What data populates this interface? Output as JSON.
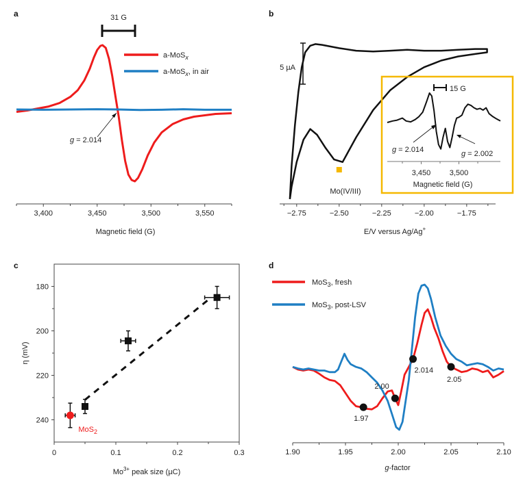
{
  "colors": {
    "red": "#ee1c1c",
    "blue": "#1f7fc4",
    "black": "#111111",
    "orange": "#f5b800"
  },
  "chart_data": [
    {
      "panel": "a",
      "type": "line",
      "xlabel": "Magnetic field (G)",
      "ylabel": "",
      "xlim": [
        3375,
        3575
      ],
      "xticks": [
        3400,
        3450,
        3500,
        3550
      ],
      "xtick_labels": [
        "3,400",
        "3,450",
        "3,500",
        "3,550"
      ],
      "scale_bar_label": "31 G",
      "annotation": {
        "text_italic": "g",
        "text": " = 2.014",
        "x": 3470
      },
      "legend": [
        {
          "label": "a-MoS",
          "sub": "x",
          "suffix": "",
          "color": "#ee1c1c"
        },
        {
          "label": "a-MoS",
          "sub": "x",
          "suffix": ", in air",
          "color": "#1f7fc4"
        }
      ],
      "series": [
        {
          "name": "a-MoSx",
          "color": "#ee1c1c",
          "x": [
            3375,
            3385,
            3395,
            3405,
            3415,
            3425,
            3432,
            3438,
            3443,
            3447,
            3450,
            3453,
            3455,
            3458,
            3461,
            3464,
            3467,
            3470,
            3473,
            3476,
            3479,
            3482,
            3485,
            3488,
            3492,
            3497,
            3503,
            3510,
            3520,
            3530,
            3540,
            3550,
            3560,
            3575
          ],
          "y": [
            0.02,
            0.04,
            0.07,
            0.1,
            0.15,
            0.24,
            0.34,
            0.48,
            0.65,
            0.82,
            0.93,
            0.99,
            1.0,
            0.96,
            0.8,
            0.55,
            0.25,
            -0.05,
            -0.4,
            -0.7,
            -0.9,
            -0.98,
            -1.0,
            -0.95,
            -0.82,
            -0.62,
            -0.43,
            -0.28,
            -0.16,
            -0.09,
            -0.05,
            -0.03,
            -0.01,
            0.0
          ]
        },
        {
          "name": "a-MoSx, in air",
          "color": "#1f7fc4",
          "x": [
            3375,
            3400,
            3425,
            3450,
            3470,
            3490,
            3510,
            3530,
            3550,
            3575
          ],
          "y": [
            0.0,
            -0.01,
            0.0,
            0.01,
            0.0,
            -0.02,
            -0.01,
            0.01,
            -0.01,
            -0.01
          ]
        }
      ]
    },
    {
      "panel": "b",
      "type": "line",
      "xlabel": "E/V versus Ag/Ag",
      "xlabel_sup": "+",
      "xlim": [
        -2.85,
        -1.58
      ],
      "xticks": [
        -2.75,
        -2.5,
        -2.25,
        -2.0,
        -1.75
      ],
      "xtick_labels": [
        "−2.75",
        "−2.50",
        "−2.25",
        "−2.00",
        "−1.75"
      ],
      "scale_bar_label": "5 µA",
      "annotation": {
        "text": "Mo(IV/III)",
        "marker_x": -2.5
      },
      "series": [
        {
          "name": "CV",
          "color": "#111111",
          "x": [
            -2.79,
            -2.78,
            -2.76,
            -2.74,
            -2.72,
            -2.7,
            -2.67,
            -2.64,
            -2.6,
            -2.55,
            -2.5,
            -2.4,
            -2.3,
            -2.2,
            -2.1,
            -2.0,
            -1.9,
            -1.8,
            -1.7,
            -1.63,
            -1.63,
            -1.7,
            -1.8,
            -1.9,
            -2.0,
            -2.1,
            -2.2,
            -2.3,
            -2.4,
            -2.48,
            -2.53,
            -2.58,
            -2.63,
            -2.67,
            -2.71,
            -2.75,
            -2.78,
            -2.79
          ],
          "y": [
            -12.0,
            -8.0,
            -3.0,
            1.0,
            4.0,
            5.8,
            6.6,
            6.8,
            6.7,
            6.5,
            6.3,
            6.0,
            5.9,
            6.0,
            6.1,
            6.0,
            6.0,
            6.1,
            6.2,
            6.2,
            5.8,
            5.6,
            5.3,
            4.8,
            4.0,
            2.8,
            1.2,
            -1.2,
            -4.5,
            -7.5,
            -7.2,
            -5.8,
            -4.2,
            -3.5,
            -4.8,
            -7.5,
            -10.5,
            -12.0
          ]
        }
      ],
      "inset": {
        "xlabel": "Magnetic field (G)",
        "xlim": [
          3405,
          3555
        ],
        "xticks": [
          3450,
          3500
        ],
        "xtick_labels": [
          "3,450",
          "3,500"
        ],
        "scale_bar_label": "15 G",
        "annotations": [
          {
            "text_italic": "g",
            "text": " = 2.014"
          },
          {
            "text_italic": "g",
            "text": " = 2.002"
          }
        ],
        "series": [
          {
            "name": "EPR inset",
            "color": "#111111",
            "x": [
              3405,
              3412,
              3418,
              3425,
              3430,
              3436,
              3442,
              3447,
              3452,
              3457,
              3461,
              3464,
              3467,
              3470,
              3473,
              3476,
              3479,
              3482,
              3485,
              3488,
              3491,
              3494,
              3497,
              3500,
              3504,
              3508,
              3512,
              3516,
              3520,
              3524,
              3528,
              3532,
              3536,
              3540,
              3545,
              3550,
              3555
            ],
            "y": [
              0.0,
              0.05,
              0.08,
              0.15,
              0.05,
              0.02,
              0.1,
              0.2,
              0.35,
              0.7,
              1.0,
              0.9,
              0.4,
              -0.3,
              -0.75,
              -0.9,
              -0.5,
              -0.2,
              -0.65,
              -0.85,
              -0.5,
              -0.1,
              0.15,
              0.18,
              0.25,
              0.5,
              0.62,
              0.58,
              0.5,
              0.45,
              0.48,
              0.42,
              0.5,
              0.3,
              0.2,
              0.12,
              0.05
            ]
          }
        ]
      }
    },
    {
      "panel": "c",
      "type": "scatter",
      "xlabel": "Mo",
      "xlabel_sup": "3+",
      "xlabel_rest": " peak size (µC)",
      "ylabel": "η (mV)",
      "xlim": [
        0,
        0.3
      ],
      "ylim": [
        250,
        170
      ],
      "y_inverted": true,
      "xticks": [
        0,
        0.1,
        0.2,
        0.3
      ],
      "xtick_labels": [
        "0",
        "0.1",
        "0.2",
        "0.3"
      ],
      "yticks": [
        180,
        200,
        220,
        240
      ],
      "ytick_labels": [
        "180",
        "200",
        "220",
        "240"
      ],
      "points": [
        {
          "x": 0.026,
          "y": 238,
          "xerr": 0.008,
          "yerr": 5.5,
          "marker": "circle",
          "color": "#ee1c1c",
          "label": "MoS",
          "label_sub": "2"
        },
        {
          "x": 0.05,
          "y": 234,
          "xerr": 0.003,
          "yerr": 3.2,
          "marker": "square",
          "color": "#111111"
        },
        {
          "x": 0.12,
          "y": 204.5,
          "xerr": 0.012,
          "yerr": 4.5,
          "marker": "square",
          "color": "#111111"
        },
        {
          "x": 0.264,
          "y": 185,
          "xerr": 0.02,
          "yerr": 5.0,
          "marker": "square",
          "color": "#111111"
        }
      ],
      "fit_line": {
        "x": [
          0.05,
          0.25
        ],
        "y": [
          231,
          186
        ],
        "style": "dashed"
      }
    },
    {
      "panel": "d",
      "type": "line",
      "xlabel": "g",
      "xlabel_rest": "-factor",
      "xlim": [
        1.9,
        2.1
      ],
      "xticks": [
        1.9,
        1.95,
        2.0,
        2.05,
        2.1
      ],
      "xtick_labels": [
        "1.90",
        "1.95",
        "2.00",
        "2.05",
        "2.10"
      ],
      "legend": [
        {
          "label": "MoS",
          "sub": "3",
          "suffix": ", fresh",
          "color": "#ee1c1c"
        },
        {
          "label": "MoS",
          "sub": "3",
          "suffix": ", post-LSV",
          "color": "#1f7fc4"
        }
      ],
      "markers": [
        {
          "x": 1.967,
          "label": "1.97"
        },
        {
          "x": 1.997,
          "label": "2.00"
        },
        {
          "x": 2.014,
          "label": "2.014"
        },
        {
          "x": 2.05,
          "label": "2.05"
        }
      ],
      "series": [
        {
          "name": "MoS3, fresh",
          "color": "#ee1c1c",
          "x": [
            1.9,
            1.905,
            1.91,
            1.915,
            1.92,
            1.925,
            1.93,
            1.935,
            1.94,
            1.945,
            1.95,
            1.955,
            1.96,
            1.965,
            1.967,
            1.97,
            1.975,
            1.98,
            1.985,
            1.99,
            1.994,
            1.997,
            2.0,
            2.003,
            2.006,
            2.01,
            2.014,
            2.018,
            2.022,
            2.025,
            2.028,
            2.031,
            2.034,
            2.038,
            2.042,
            2.046,
            2.05,
            2.055,
            2.06,
            2.065,
            2.07,
            2.075,
            2.08,
            2.085,
            2.09,
            2.095,
            2.1
          ],
          "y": [
            0.15,
            0.1,
            0.08,
            0.1,
            0.08,
            0.02,
            -0.05,
            -0.1,
            -0.12,
            -0.2,
            -0.35,
            -0.5,
            -0.6,
            -0.62,
            -0.62,
            -0.65,
            -0.66,
            -0.6,
            -0.45,
            -0.32,
            -0.3,
            -0.45,
            -0.58,
            -0.3,
            0.0,
            0.15,
            0.3,
            0.6,
            0.95,
            1.18,
            1.25,
            1.1,
            0.9,
            0.7,
            0.45,
            0.25,
            0.15,
            0.1,
            0.05,
            0.07,
            0.12,
            0.1,
            0.05,
            0.08,
            -0.05,
            0.0,
            0.07
          ]
        },
        {
          "name": "MoS3, post-LSV",
          "color": "#1f7fc4",
          "x": [
            1.9,
            1.905,
            1.91,
            1.915,
            1.92,
            1.925,
            1.93,
            1.935,
            1.94,
            1.943,
            1.946,
            1.949,
            1.952,
            1.955,
            1.96,
            1.965,
            1.97,
            1.975,
            1.98,
            1.985,
            1.99,
            1.994,
            1.998,
            2.001,
            2.004,
            2.007,
            2.01,
            2.013,
            2.016,
            2.019,
            2.022,
            2.025,
            2.028,
            2.031,
            2.035,
            2.04,
            2.045,
            2.05,
            2.055,
            2.06,
            2.065,
            2.07,
            2.075,
            2.08,
            2.085,
            2.09,
            2.095,
            2.1
          ],
          "y": [
            0.15,
            0.12,
            0.1,
            0.12,
            0.1,
            0.08,
            0.08,
            0.05,
            0.05,
            0.1,
            0.25,
            0.4,
            0.28,
            0.2,
            0.15,
            0.12,
            0.05,
            -0.05,
            -0.15,
            -0.3,
            -0.5,
            -0.75,
            -1.0,
            -1.05,
            -0.9,
            -0.5,
            -0.1,
            0.5,
            1.1,
            1.55,
            1.7,
            1.72,
            1.65,
            1.45,
            1.1,
            0.75,
            0.55,
            0.4,
            0.3,
            0.25,
            0.18,
            0.2,
            0.22,
            0.2,
            0.15,
            0.08,
            0.12,
            0.1
          ]
        }
      ]
    }
  ]
}
